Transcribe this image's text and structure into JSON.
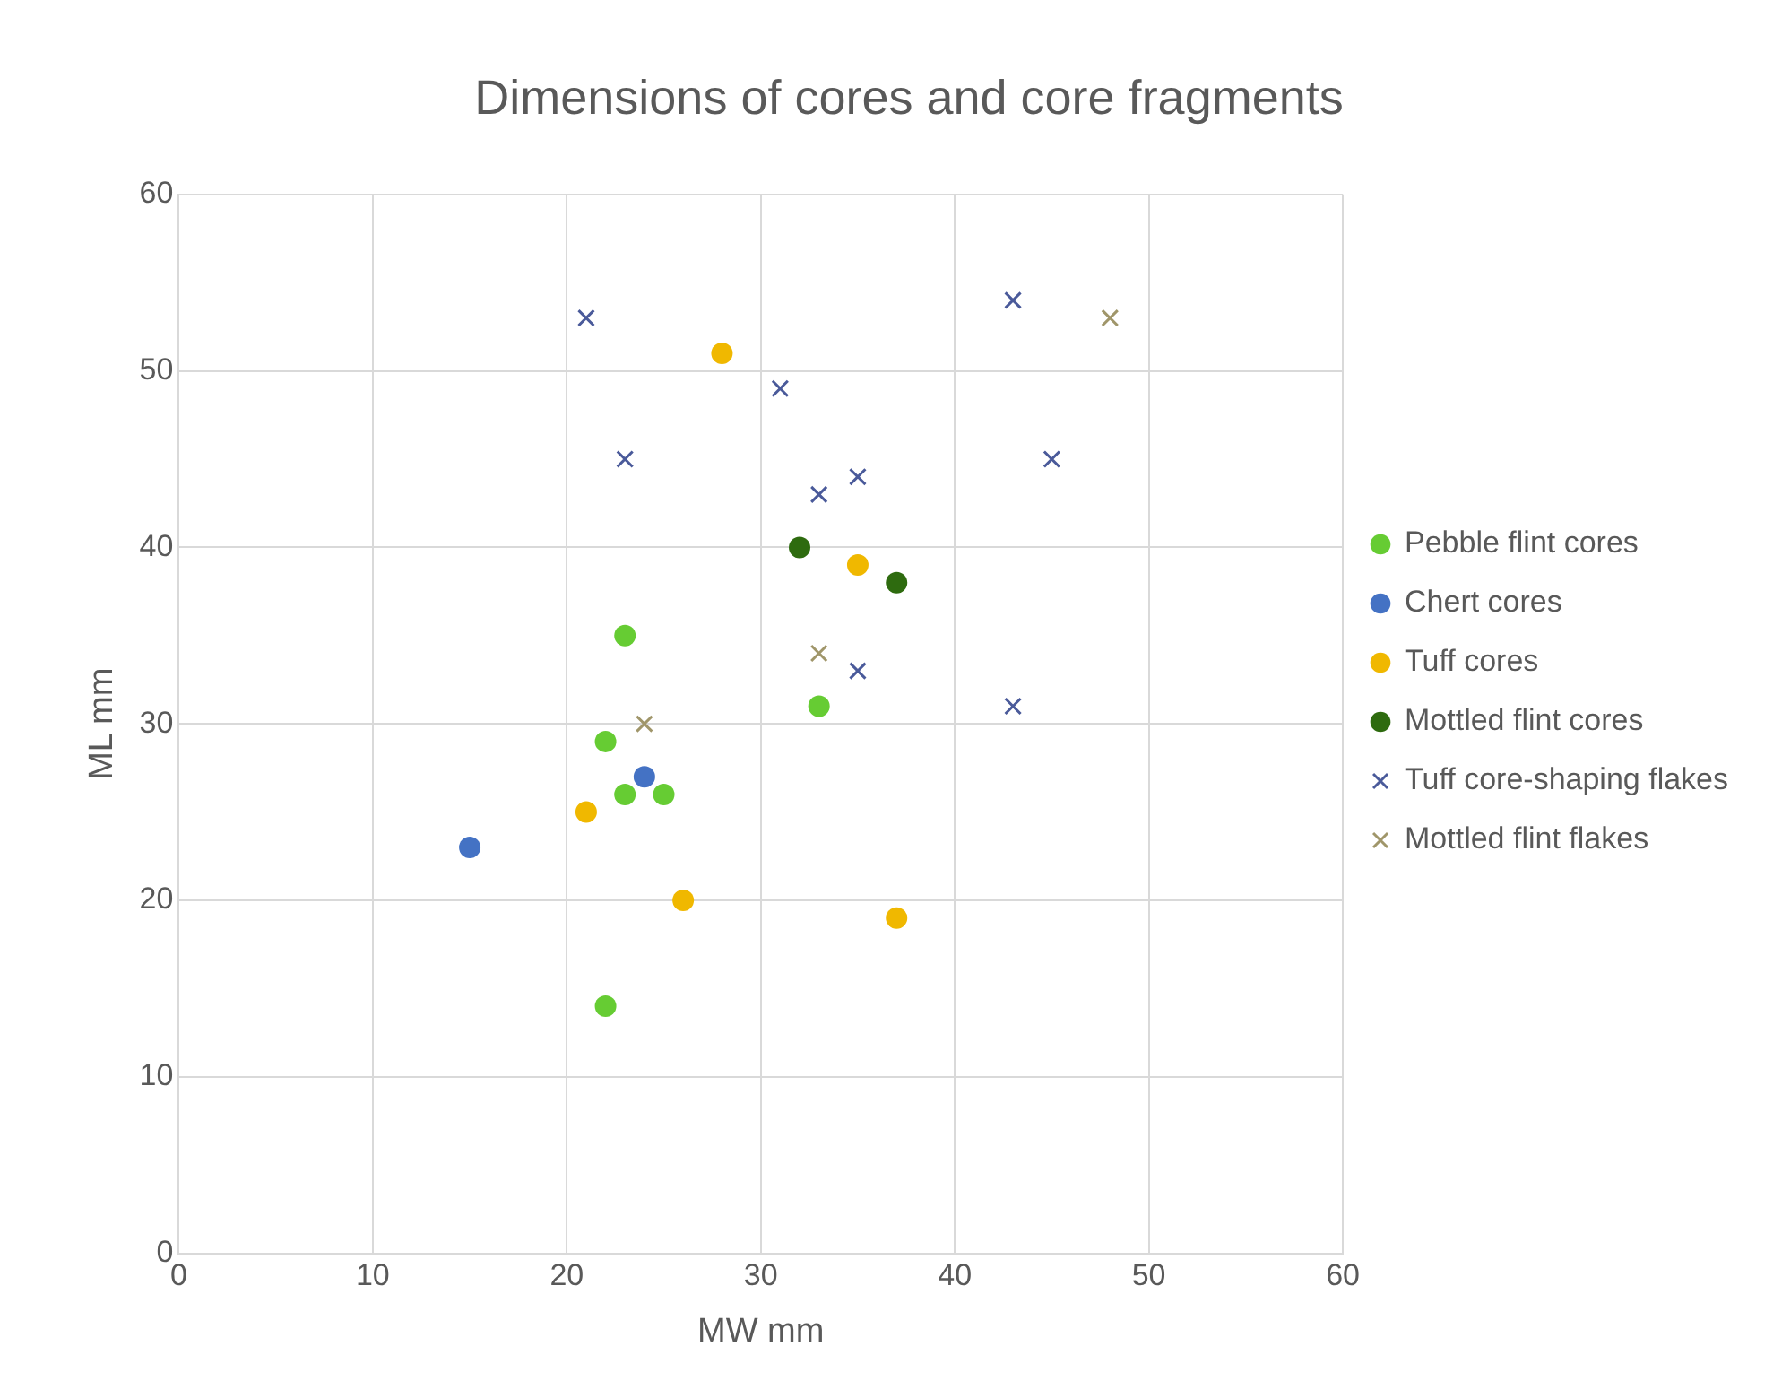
{
  "chart_data": {
    "type": "scatter",
    "title": "Dimensions of cores and core fragments",
    "xlabel": "MW mm",
    "ylabel": "ML mm",
    "xlim": [
      0,
      60
    ],
    "ylim": [
      0,
      60
    ],
    "xticks": [
      0,
      10,
      20,
      30,
      40,
      50,
      60
    ],
    "yticks": [
      0,
      10,
      20,
      30,
      40,
      50,
      60
    ],
    "grid": true,
    "legend": "right",
    "series": [
      {
        "name": "Pebble flint cores",
        "color": "#66cc33",
        "marker": "circle",
        "x": [
          23,
          22,
          23,
          25,
          33,
          22
        ],
        "values": [
          35,
          29,
          26,
          26,
          31,
          14
        ]
      },
      {
        "name": "Chert cores",
        "color": "#4472c4",
        "marker": "circle",
        "x": [
          15,
          24
        ],
        "values": [
          23,
          27
        ]
      },
      {
        "name": "Tuff cores",
        "color": "#f0b800",
        "marker": "circle",
        "x": [
          28,
          35,
          21,
          26,
          37
        ],
        "values": [
          51,
          39,
          25,
          20,
          19
        ]
      },
      {
        "name": "Mottled flint cores",
        "color": "#2e6b0f",
        "marker": "circle",
        "x": [
          32,
          37
        ],
        "values": [
          40,
          38
        ]
      },
      {
        "name": "Tuff core-shaping flakes",
        "color": "#4a5a9a",
        "marker": "cross",
        "x": [
          21,
          23,
          31,
          33,
          35,
          35,
          43,
          45,
          43
        ],
        "values": [
          53,
          45,
          49,
          43,
          44,
          33,
          54,
          45,
          31
        ]
      },
      {
        "name": "Mottled flint flakes",
        "color": "#a0966a",
        "marker": "cross",
        "x": [
          48,
          33,
          24
        ],
        "values": [
          53,
          34,
          30
        ]
      }
    ]
  }
}
